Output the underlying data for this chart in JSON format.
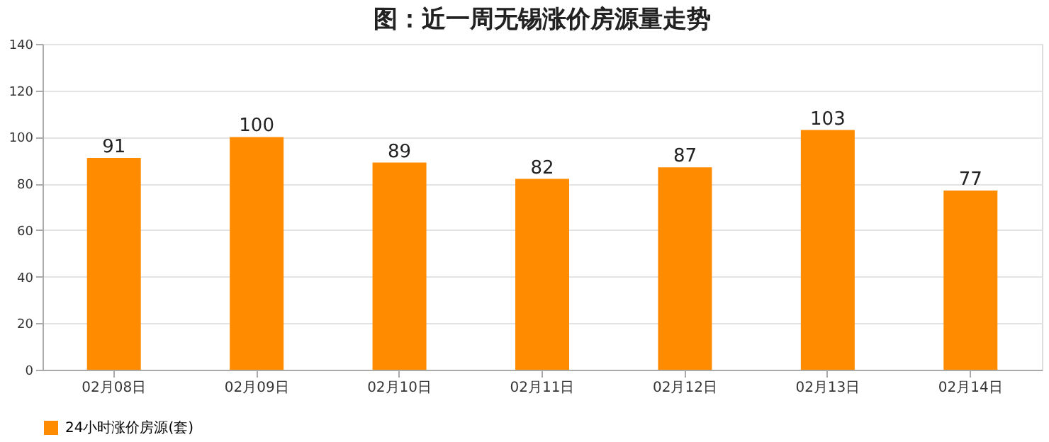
{
  "chart_data": {
    "type": "bar",
    "title": "图：近一周无锡涨价房源量走势",
    "categories": [
      "02月08日",
      "02月09日",
      "02月10日",
      "02月11日",
      "02月12日",
      "02月13日",
      "02月14日"
    ],
    "series": [
      {
        "name": "24小时涨价房源(套)",
        "color": "#ff8c00",
        "values": [
          91,
          100,
          89,
          82,
          87,
          103,
          77
        ]
      }
    ],
    "ylim": [
      0,
      140
    ],
    "yticks": [
      0,
      20,
      40,
      60,
      80,
      100,
      120,
      140
    ],
    "grid": "y",
    "data_labels": true,
    "legend": "bottom"
  }
}
